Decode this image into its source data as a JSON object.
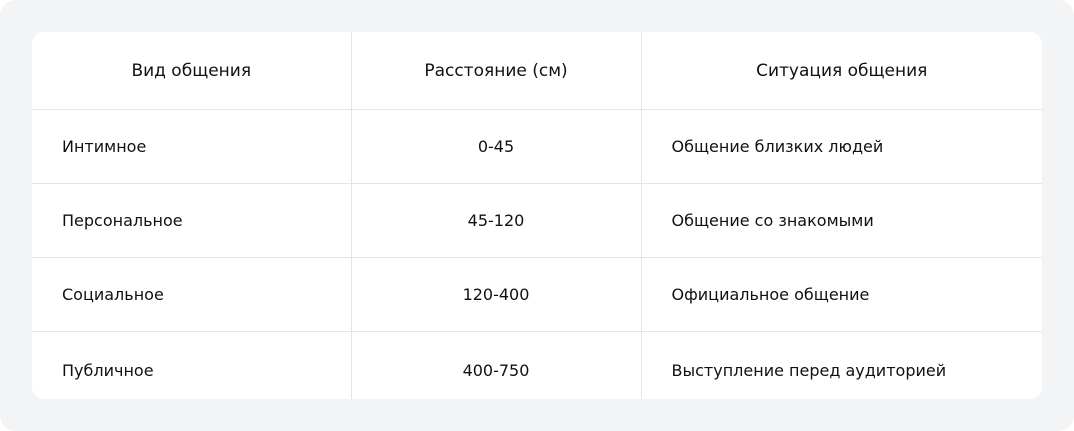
{
  "table": {
    "headers": [
      "Вид общения",
      "Расстояние (см)",
      "Ситуация общения"
    ],
    "rows": [
      [
        "Интимное",
        "0-45",
        "Общение близких людей"
      ],
      [
        "Персональное",
        "45-120",
        "Общение со знакомыми"
      ],
      [
        "Социальное",
        "120-400",
        "Официальное общение"
      ],
      [
        "Публичное",
        "400-750",
        "Выступление перед аудиторией"
      ]
    ]
  }
}
